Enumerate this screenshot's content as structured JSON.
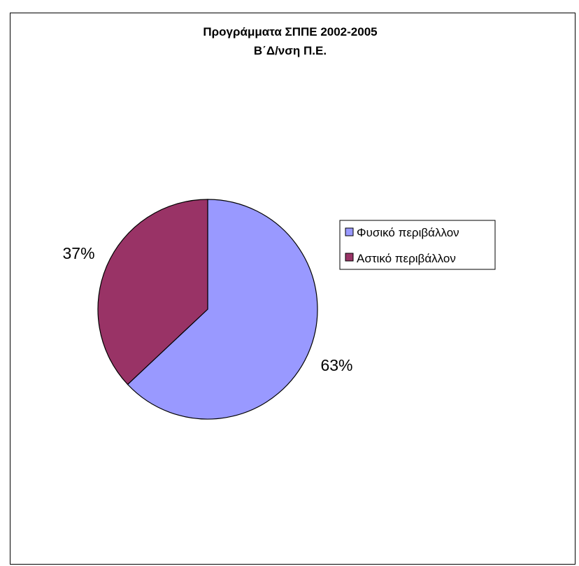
{
  "chart_data": {
    "type": "pie",
    "title": "Προγράμματα ΣΠΠΕ 2002-2005",
    "subtitle": "Β΄Δ/νση Π.Ε.",
    "slices": [
      {
        "label": "Φυσικό περιβάλλον",
        "value": 63,
        "display": "63%",
        "color": "#9999ff"
      },
      {
        "label": "Αστικό περιβάλλον",
        "value": 37,
        "display": "37%",
        "color": "#993366"
      }
    ],
    "legend_position": "right"
  }
}
